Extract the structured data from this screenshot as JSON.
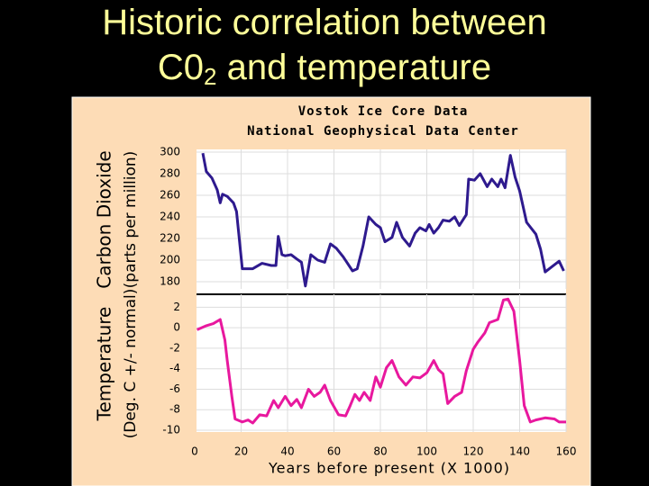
{
  "slide": {
    "title": [
      "Historic correlation between",
      [
        "C0",
        "2",
        " and temperature"
      ]
    ]
  },
  "chart_data": [
    {
      "type": "line",
      "title": [
        "Vostok Ice Core Data",
        "National Geophysical Data Center"
      ],
      "ylabel": [
        "Carbon Dioxide",
        "(parts per million)"
      ],
      "color": "#2e1a8e",
      "x": [
        3.5,
        5,
        7.4,
        9.7,
        11,
        12,
        14,
        16.7,
        18,
        20.5,
        25,
        29,
        33,
        35,
        36,
        37.6,
        39,
        41.5,
        44,
        46,
        47.7,
        50,
        53,
        56,
        58.5,
        61,
        64,
        68,
        70,
        72.5,
        75,
        78,
        80,
        82,
        85,
        87,
        89.5,
        92.6,
        95,
        97,
        99.6,
        101,
        103,
        105,
        107,
        109.7,
        112,
        114,
        117,
        118,
        120.5,
        123,
        126,
        128,
        130.6,
        132,
        133.7,
        136,
        138,
        140,
        143,
        147,
        149,
        151,
        154,
        157,
        159
      ],
      "values": [
        299,
        282,
        276,
        265,
        253,
        261,
        259,
        253,
        245,
        192,
        192,
        197,
        195,
        195,
        222,
        205,
        204,
        205,
        201,
        198,
        176,
        205,
        200,
        198,
        215,
        211,
        203,
        190,
        192,
        213,
        240,
        233,
        230,
        217,
        221,
        235,
        221,
        213,
        225,
        230,
        227,
        233,
        225,
        230,
        237,
        236,
        240,
        232,
        242,
        275,
        274,
        280,
        268,
        275,
        268,
        275,
        267,
        297,
        277,
        264,
        235,
        224,
        210,
        189,
        194,
        199,
        190
      ],
      "xlim": [
        0,
        160
      ],
      "ylim": [
        175,
        300
      ],
      "yticks": [
        180,
        200,
        220,
        240,
        260,
        280,
        300
      ],
      "grid": true
    },
    {
      "type": "line",
      "ylabel": [
        "Temperature",
        "(Deg. C +/- normal)"
      ],
      "xlabel": "Years before present (X 1000)",
      "color": "#e8189e",
      "x": [
        1,
        5,
        8,
        11,
        13,
        14,
        16,
        17.4,
        20.5,
        23,
        25,
        28,
        31,
        34,
        36,
        39,
        41.5,
        44,
        46,
        49,
        51.5,
        54,
        56,
        58.5,
        62,
        65,
        67,
        69,
        71,
        73,
        75.6,
        78,
        80,
        82.6,
        85,
        88,
        91,
        94,
        97,
        100,
        103,
        105,
        107,
        109,
        112,
        115,
        117,
        120,
        122,
        125,
        127,
        130.6,
        133,
        135,
        137.5,
        140,
        142,
        144.6,
        147,
        151,
        155,
        157,
        160
      ],
      "values": [
        -0.2,
        0.2,
        0.4,
        0.8,
        -1.2,
        -3.2,
        -6.7,
        -8.9,
        -9.2,
        -9.0,
        -9.3,
        -8.5,
        -8.6,
        -7.1,
        -7.8,
        -6.7,
        -7.6,
        -7.0,
        -7.8,
        -6.0,
        -6.7,
        -6.3,
        -5.6,
        -7.1,
        -8.5,
        -8.6,
        -7.6,
        -6.5,
        -7.1,
        -6.3,
        -7.1,
        -4.8,
        -5.8,
        -3.9,
        -3.2,
        -4.8,
        -5.6,
        -4.8,
        -4.9,
        -4.4,
        -3.2,
        -4.1,
        -4.5,
        -7.4,
        -6.7,
        -6.3,
        -4.2,
        -2.1,
        -1.4,
        -0.5,
        0.5,
        0.8,
        2.7,
        2.8,
        1.6,
        -3.2,
        -7.6,
        -9.2,
        -9.0,
        -8.8,
        -8.9,
        -9.2,
        -9.2
      ],
      "xlim": [
        0,
        160
      ],
      "xticks": [
        0,
        20,
        40,
        60,
        80,
        100,
        120,
        140,
        160
      ],
      "ylim": [
        -10,
        3
      ],
      "yticks": [
        2,
        0,
        -2,
        -4,
        -6,
        -8,
        -10
      ],
      "grid": true
    }
  ]
}
